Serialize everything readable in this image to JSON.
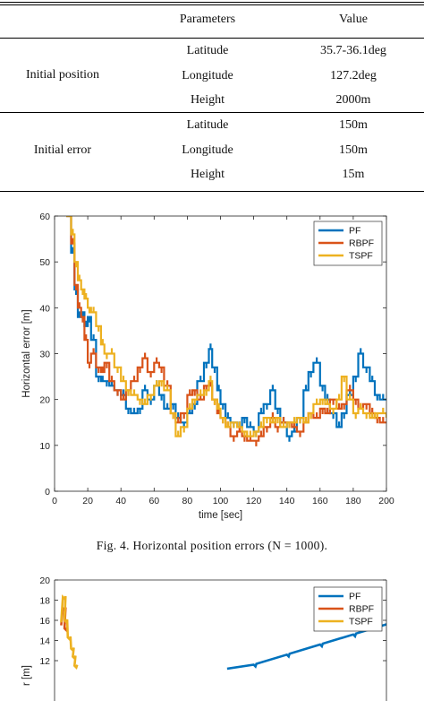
{
  "table": {
    "headers": [
      "Parameters",
      "Value"
    ],
    "groups": [
      {
        "label": "Initial position",
        "rows": [
          {
            "param": "Latitude",
            "value": "35.7-36.1deg"
          },
          {
            "param": "Longitude",
            "value": "127.2deg"
          },
          {
            "param": "Height",
            "value": "2000m"
          }
        ]
      },
      {
        "label": "Initial error",
        "rows": [
          {
            "param": "Latitude",
            "value": "150m"
          },
          {
            "param": "Longitude",
            "value": "150m"
          },
          {
            "param": "Height",
            "value": "15m"
          }
        ]
      }
    ]
  },
  "figure4": {
    "caption": "Fig. 4.    Horizontal position errors (N = 1000)."
  },
  "chart_data": [
    {
      "type": "line",
      "title": "",
      "xlabel": "time [sec]",
      "ylabel": "Horizontal error [m]",
      "xlim": [
        0,
        200
      ],
      "ylim": [
        0,
        60
      ],
      "xticks": [
        0,
        20,
        40,
        60,
        80,
        100,
        120,
        140,
        160,
        180,
        200
      ],
      "yticks": [
        0,
        10,
        20,
        30,
        40,
        50,
        60
      ],
      "grid": false,
      "legend_position": "top-right",
      "series": [
        {
          "name": "PF",
          "color": "#0072BD",
          "x": [
            7,
            10,
            12,
            14,
            16,
            18,
            20,
            22,
            25,
            28,
            30,
            33,
            36,
            40,
            43,
            46,
            50,
            53,
            56,
            60,
            63,
            66,
            70,
            73,
            76,
            80,
            83,
            86,
            90,
            93,
            95,
            98,
            100,
            103,
            106,
            110,
            113,
            116,
            120,
            123,
            126,
            130,
            133,
            136,
            140,
            143,
            146,
            150,
            153,
            156,
            160,
            163,
            166,
            170,
            173,
            176,
            180,
            183,
            186,
            190,
            193,
            196,
            200
          ],
          "y": [
            60,
            52,
            44,
            38,
            39,
            36,
            38,
            33,
            25,
            24,
            24,
            23,
            22,
            21,
            18,
            17,
            18,
            22,
            20,
            23,
            21,
            18,
            19,
            16,
            15,
            17,
            19,
            24,
            28,
            31,
            27,
            22,
            19,
            16,
            15,
            14,
            16,
            14,
            13,
            17,
            19,
            22,
            18,
            15,
            12,
            13,
            16,
            22,
            26,
            28,
            23,
            20,
            17,
            14,
            17,
            21,
            25,
            30,
            27,
            24,
            21,
            20,
            20
          ]
        },
        {
          "name": "RBPF",
          "color": "#D95319",
          "x": [
            7,
            10,
            12,
            14,
            16,
            18,
            20,
            22,
            25,
            28,
            30,
            33,
            36,
            40,
            43,
            46,
            50,
            53,
            56,
            60,
            63,
            66,
            70,
            73,
            76,
            80,
            83,
            86,
            90,
            93,
            95,
            98,
            100,
            103,
            106,
            110,
            113,
            116,
            120,
            123,
            126,
            130,
            133,
            136,
            140,
            143,
            146,
            150,
            153,
            156,
            160,
            163,
            166,
            170,
            173,
            176,
            180,
            183,
            186,
            190,
            193,
            196,
            200
          ],
          "y": [
            60,
            54,
            45,
            40,
            38,
            33,
            28,
            30,
            27,
            26,
            28,
            24,
            22,
            20,
            22,
            24,
            27,
            29,
            26,
            28,
            27,
            23,
            17,
            15,
            17,
            21,
            22,
            20,
            23,
            23,
            20,
            17,
            16,
            14,
            12,
            13,
            12,
            11,
            11,
            12,
            14,
            16,
            14,
            15,
            15,
            14,
            13,
            15,
            17,
            16,
            18,
            17,
            20,
            18,
            19,
            22,
            20,
            18,
            19,
            17,
            16,
            15,
            15
          ]
        },
        {
          "name": "TSPF",
          "color": "#EDB120",
          "x": [
            7,
            10,
            12,
            14,
            16,
            18,
            20,
            22,
            25,
            28,
            30,
            33,
            36,
            40,
            43,
            46,
            50,
            53,
            56,
            60,
            63,
            66,
            70,
            73,
            76,
            80,
            83,
            86,
            90,
            93,
            95,
            98,
            100,
            103,
            106,
            110,
            113,
            116,
            120,
            123,
            126,
            130,
            133,
            136,
            140,
            143,
            146,
            150,
            153,
            156,
            160,
            163,
            166,
            170,
            173,
            176,
            180,
            183,
            186,
            190,
            193,
            196,
            200
          ],
          "y": [
            60,
            56,
            50,
            46,
            44,
            42,
            40,
            39,
            36,
            32,
            30,
            30,
            27,
            24,
            22,
            21,
            20,
            19,
            21,
            23,
            24,
            22,
            17,
            12,
            14,
            18,
            20,
            21,
            22,
            24,
            20,
            18,
            16,
            14,
            15,
            14,
            13,
            12,
            13,
            14,
            16,
            15,
            16,
            14,
            15,
            15,
            16,
            15,
            17,
            19,
            20,
            19,
            18,
            20,
            25,
            20,
            17,
            18,
            17,
            16,
            17,
            17,
            16
          ]
        }
      ]
    },
    {
      "type": "line",
      "title": "",
      "xlabel": "",
      "ylabel": "r [m]",
      "ylim_visible": [
        11,
        20
      ],
      "yticks": [
        12,
        14,
        16,
        18,
        20
      ],
      "grid": false,
      "legend_position": "top-right",
      "series": [
        {
          "name": "PF",
          "color": "#0072BD",
          "points": [
            [
              0.52,
              11.2
            ],
            [
              0.6,
              11.6
            ],
            [
              0.7,
              12.6
            ],
            [
              0.8,
              13.6
            ],
            [
              0.9,
              14.6
            ],
            [
              1.0,
              15.6
            ]
          ]
        },
        {
          "name": "RBPF",
          "color": "#D95319",
          "points": [
            [
              0.02,
              15.5
            ],
            [
              0.025,
              17.2
            ],
            [
              0.03,
              15.2
            ]
          ]
        },
        {
          "name": "TSPF",
          "color": "#EDB120",
          "points": [
            [
              0.02,
              15.8
            ],
            [
              0.025,
              18.3
            ],
            [
              0.03,
              16.0
            ],
            [
              0.04,
              14.3
            ],
            [
              0.05,
              13.2
            ],
            [
              0.055,
              12.4
            ],
            [
              0.06,
              11.5
            ]
          ]
        }
      ]
    }
  ]
}
